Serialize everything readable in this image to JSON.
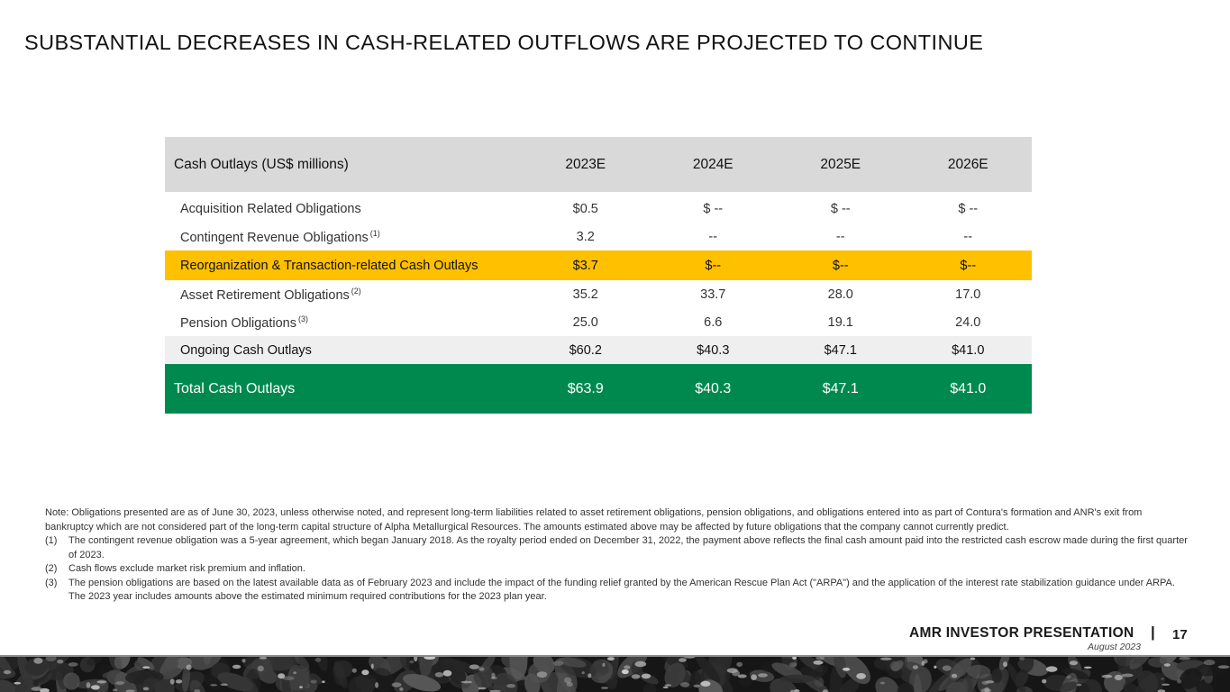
{
  "slide": {
    "title": "SUBSTANTIAL DECREASES IN CASH-RELATED OUTFLOWS ARE PROJECTED TO CONTINUE"
  },
  "table": {
    "header": {
      "label": "Cash Outlays (US$ millions)",
      "years": [
        "2023E",
        "2024E",
        "2025E",
        "2026E"
      ]
    },
    "rows": [
      {
        "label": "Acquisition Related Obligations",
        "note": "",
        "values": [
          "$0.5",
          "$ --",
          "$ --",
          "$ --"
        ]
      },
      {
        "label": "Contingent Revenue Obligations",
        "note": "(1)",
        "values": [
          "3.2",
          "--",
          "--",
          "--"
        ]
      },
      {
        "label": "Reorganization & Transaction-related Cash Outlays",
        "note": "",
        "values": [
          "$3.7",
          "$--",
          "$--",
          "$--"
        ]
      },
      {
        "label": "Asset Retirement Obligations",
        "note": "(2)",
        "values": [
          "35.2",
          "33.7",
          "28.0",
          "17.0"
        ]
      },
      {
        "label": "Pension Obligations",
        "note": "(3)",
        "values": [
          "25.0",
          "6.6",
          "19.1",
          "24.0"
        ]
      },
      {
        "label": "Ongoing Cash Outlays",
        "note": "",
        "values": [
          "$60.2",
          "$40.3",
          "$47.1",
          "$41.0"
        ]
      },
      {
        "label": "Total Cash Outlays",
        "note": "",
        "values": [
          "$63.9",
          "$40.3",
          "$47.1",
          "$41.0"
        ]
      }
    ],
    "colors": {
      "header_bg": "#d9d9d9",
      "highlight_bg": "#ffc000",
      "subtotal_bg": "#efefef",
      "total_bg": "#00894e"
    }
  },
  "notes": {
    "intro": "Note: Obligations presented are as of June 30, 2023, unless otherwise noted, and represent long-term liabilities related to asset retirement obligations, pension obligations, and obligations entered into as part of Contura's formation and ANR's exit from bankruptcy which are not considered part of the long-term capital structure of Alpha Metallurgical Resources. The amounts estimated above may be affected by future obligations that the company cannot currently predict.",
    "footnotes": [
      {
        "num": "(1)",
        "text": "The contingent revenue obligation was a 5-year agreement, which began January 2018. As the royalty period ended on December 31, 2022, the payment above reflects the final cash amount paid into the restricted cash escrow made during the first quarter of 2023."
      },
      {
        "num": "(2)",
        "text": "Cash flows exclude market risk premium and inflation."
      },
      {
        "num": "(3)",
        "text": "The pension obligations are based on the latest available data as of February 2023 and include the impact of the funding relief granted by the American Rescue Plan Act (\"ARPA\") and the application of the interest rate stabilization guidance under ARPA. The 2023 year includes amounts above the estimated minimum required contributions for the 2023 plan year."
      }
    ]
  },
  "footer": {
    "brand": "AMR INVESTOR PRESENTATION",
    "separator": "|",
    "page_number": "17",
    "date": "August 2023",
    "decor_icon": "coal-strip-image"
  }
}
